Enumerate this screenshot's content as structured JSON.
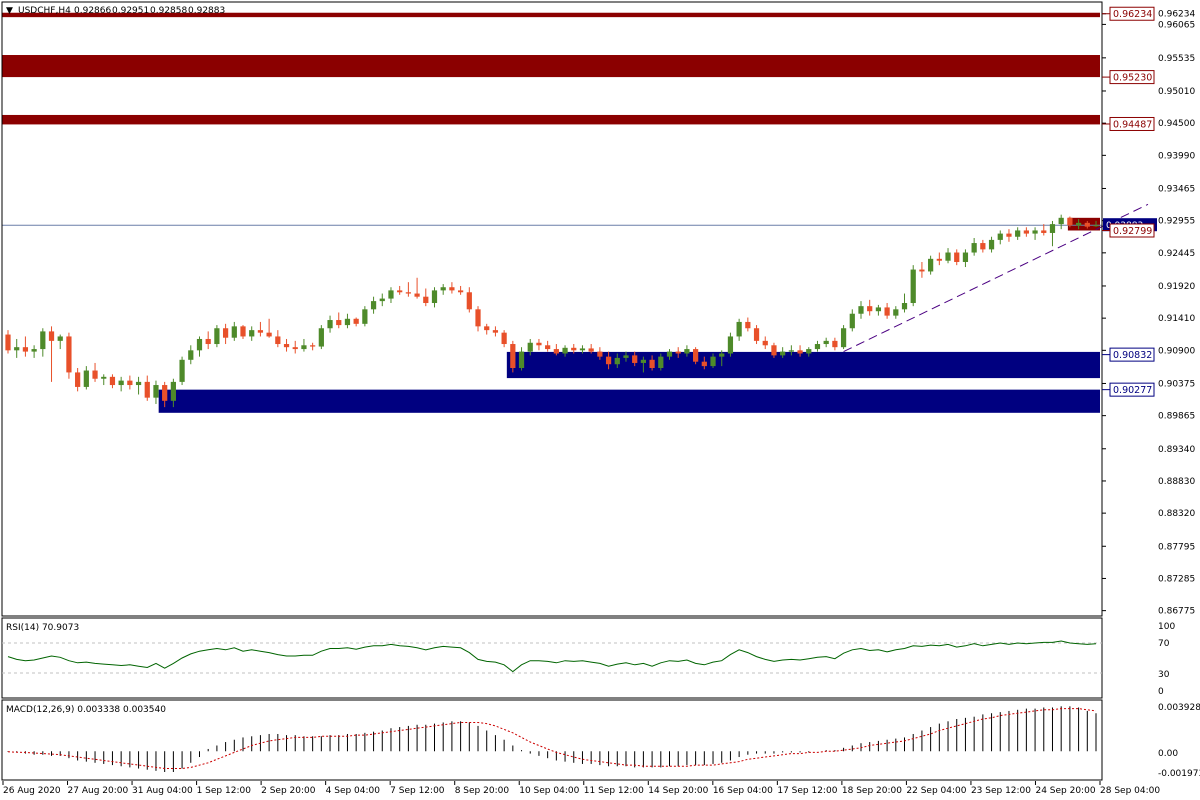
{
  "header": {
    "menu_glyph": "▼",
    "symbol": "USDCHF,H4",
    "open": "0.92866",
    "high": "0.92951",
    "low": "0.92858",
    "close": "0.92883"
  },
  "price_axis": {
    "ticks": [
      "0.96234",
      "0.96065",
      "0.95535",
      "0.95010",
      "0.94500",
      "0.93990",
      "0.93465",
      "0.92955",
      "0.92445",
      "0.91920",
      "0.91410",
      "0.90900",
      "0.90375",
      "0.89865",
      "0.89340",
      "0.88830",
      "0.88320",
      "0.87795",
      "0.87285",
      "0.86775"
    ],
    "current_price": "0.92883"
  },
  "levels": [
    {
      "price": "0.96234",
      "kind": "resistance"
    },
    {
      "price": "0.95230",
      "kind": "resistance"
    },
    {
      "price": "0.94487",
      "kind": "resistance"
    },
    {
      "price": "0.92799",
      "kind": "resistance"
    },
    {
      "price": "0.90832",
      "kind": "support"
    },
    {
      "price": "0.90277",
      "kind": "support"
    }
  ],
  "colors": {
    "up_candle": "#4e8a2a",
    "down_candle": "#e8502a",
    "resistance_zone": "#8b0000",
    "support_zone": "#000080",
    "rsi_line": "#006400",
    "macd_hist": "#000000",
    "macd_signal": "#cc0000",
    "trendline": "#4b0082"
  },
  "time_axis": {
    "labels": [
      "26 Aug 2020",
      "27 Aug 20:00",
      "31 Aug 04:00",
      "1 Sep 12:00",
      "2 Sep 20:00",
      "4 Sep 04:00",
      "7 Sep 12:00",
      "8 Sep 20:00",
      "10 Sep 04:00",
      "11 Sep 12:00",
      "14 Sep 20:00",
      "16 Sep 04:00",
      "17 Sep 12:00",
      "18 Sep 20:00",
      "22 Sep 04:00",
      "23 Sep 12:00",
      "24 Sep 20:00",
      "28 Sep 04:00"
    ]
  },
  "rsi": {
    "label": "RSI(14) 70.9073",
    "levels": [
      "100",
      "70",
      "30",
      "0"
    ]
  },
  "macd": {
    "label": "MACD(12,26,9) 0.003338 0.003540",
    "levels": [
      "0.003928",
      "0.00",
      "-0.001973"
    ]
  },
  "chart_data": {
    "type": "candlestick",
    "symbol": "USDCHF",
    "timeframe": "H4",
    "ylim": [
      0.8669,
      0.9642
    ],
    "candles": [
      {
        "o": 0.9115,
        "h": 0.9122,
        "l": 0.9085,
        "c": 0.909
      },
      {
        "o": 0.909,
        "h": 0.9108,
        "l": 0.9078,
        "c": 0.9095
      },
      {
        "o": 0.9095,
        "h": 0.9112,
        "l": 0.908,
        "c": 0.9088
      },
      {
        "o": 0.9088,
        "h": 0.9098,
        "l": 0.9078,
        "c": 0.9092
      },
      {
        "o": 0.9092,
        "h": 0.9125,
        "l": 0.908,
        "c": 0.912
      },
      {
        "o": 0.912,
        "h": 0.9128,
        "l": 0.904,
        "c": 0.9105
      },
      {
        "o": 0.9105,
        "h": 0.9115,
        "l": 0.9092,
        "c": 0.9112
      },
      {
        "o": 0.9112,
        "h": 0.9118,
        "l": 0.9045,
        "c": 0.9055
      },
      {
        "o": 0.9055,
        "h": 0.9062,
        "l": 0.9025,
        "c": 0.9032
      },
      {
        "o": 0.9032,
        "h": 0.9065,
        "l": 0.9028,
        "c": 0.9058
      },
      {
        "o": 0.9058,
        "h": 0.907,
        "l": 0.904,
        "c": 0.9045
      },
      {
        "o": 0.9045,
        "h": 0.9052,
        "l": 0.9035,
        "c": 0.9048
      },
      {
        "o": 0.9048,
        "h": 0.9052,
        "l": 0.903,
        "c": 0.9035
      },
      {
        "o": 0.9035,
        "h": 0.9048,
        "l": 0.9025,
        "c": 0.9042
      },
      {
        "o": 0.9042,
        "h": 0.905,
        "l": 0.9028,
        "c": 0.9035
      },
      {
        "o": 0.9035,
        "h": 0.9048,
        "l": 0.902,
        "c": 0.904
      },
      {
        "o": 0.904,
        "h": 0.905,
        "l": 0.901,
        "c": 0.9015
      },
      {
        "o": 0.9015,
        "h": 0.9042,
        "l": 0.9005,
        "c": 0.9035
      },
      {
        "o": 0.9035,
        "h": 0.904,
        "l": 0.9,
        "c": 0.901
      },
      {
        "o": 0.901,
        "h": 0.9045,
        "l": 0.9,
        "c": 0.904
      },
      {
        "o": 0.904,
        "h": 0.908,
        "l": 0.9035,
        "c": 0.9075
      },
      {
        "o": 0.9075,
        "h": 0.9098,
        "l": 0.9068,
        "c": 0.909
      },
      {
        "o": 0.909,
        "h": 0.9112,
        "l": 0.908,
        "c": 0.9108
      },
      {
        "o": 0.9108,
        "h": 0.912,
        "l": 0.9092,
        "c": 0.91
      },
      {
        "o": 0.91,
        "h": 0.913,
        "l": 0.9095,
        "c": 0.9125
      },
      {
        "o": 0.9125,
        "h": 0.9132,
        "l": 0.91,
        "c": 0.911
      },
      {
        "o": 0.911,
        "h": 0.9135,
        "l": 0.9105,
        "c": 0.9128
      },
      {
        "o": 0.9128,
        "h": 0.913,
        "l": 0.9108,
        "c": 0.9112
      },
      {
        "o": 0.9112,
        "h": 0.9128,
        "l": 0.9105,
        "c": 0.9122
      },
      {
        "o": 0.9122,
        "h": 0.9135,
        "l": 0.9112,
        "c": 0.9118
      },
      {
        "o": 0.9118,
        "h": 0.914,
        "l": 0.911,
        "c": 0.9112
      },
      {
        "o": 0.9112,
        "h": 0.9122,
        "l": 0.9095,
        "c": 0.91
      },
      {
        "o": 0.91,
        "h": 0.9108,
        "l": 0.9088,
        "c": 0.9095
      },
      {
        "o": 0.9095,
        "h": 0.9105,
        "l": 0.9085,
        "c": 0.9092
      },
      {
        "o": 0.9092,
        "h": 0.9108,
        "l": 0.9088,
        "c": 0.9098
      },
      {
        "o": 0.9098,
        "h": 0.9102,
        "l": 0.909,
        "c": 0.9096
      },
      {
        "o": 0.9096,
        "h": 0.913,
        "l": 0.9092,
        "c": 0.9125
      },
      {
        "o": 0.9125,
        "h": 0.9145,
        "l": 0.9118,
        "c": 0.9138
      },
      {
        "o": 0.9138,
        "h": 0.915,
        "l": 0.9125,
        "c": 0.913
      },
      {
        "o": 0.913,
        "h": 0.9148,
        "l": 0.9125,
        "c": 0.914
      },
      {
        "o": 0.914,
        "h": 0.9142,
        "l": 0.9128,
        "c": 0.9132
      },
      {
        "o": 0.9132,
        "h": 0.916,
        "l": 0.9128,
        "c": 0.9155
      },
      {
        "o": 0.9155,
        "h": 0.9175,
        "l": 0.9148,
        "c": 0.9168
      },
      {
        "o": 0.9168,
        "h": 0.918,
        "l": 0.916,
        "c": 0.9172
      },
      {
        "o": 0.9172,
        "h": 0.919,
        "l": 0.9165,
        "c": 0.9185
      },
      {
        "o": 0.9185,
        "h": 0.9192,
        "l": 0.9178,
        "c": 0.9182
      },
      {
        "o": 0.9182,
        "h": 0.9198,
        "l": 0.9175,
        "c": 0.918
      },
      {
        "o": 0.918,
        "h": 0.9205,
        "l": 0.9172,
        "c": 0.9175
      },
      {
        "o": 0.9175,
        "h": 0.9188,
        "l": 0.916,
        "c": 0.9165
      },
      {
        "o": 0.9165,
        "h": 0.919,
        "l": 0.9158,
        "c": 0.9185
      },
      {
        "o": 0.9185,
        "h": 0.9195,
        "l": 0.9178,
        "c": 0.919
      },
      {
        "o": 0.919,
        "h": 0.9198,
        "l": 0.918,
        "c": 0.9185
      },
      {
        "o": 0.9185,
        "h": 0.9192,
        "l": 0.9178,
        "c": 0.9182
      },
      {
        "o": 0.9182,
        "h": 0.919,
        "l": 0.915,
        "c": 0.9155
      },
      {
        "o": 0.9155,
        "h": 0.916,
        "l": 0.912,
        "c": 0.9128
      },
      {
        "o": 0.9128,
        "h": 0.9132,
        "l": 0.9115,
        "c": 0.9122
      },
      {
        "o": 0.9122,
        "h": 0.9128,
        "l": 0.9112,
        "c": 0.9118
      },
      {
        "o": 0.9118,
        "h": 0.9122,
        "l": 0.9095,
        "c": 0.91
      },
      {
        "o": 0.91,
        "h": 0.9105,
        "l": 0.9055,
        "c": 0.9062
      },
      {
        "o": 0.9062,
        "h": 0.9095,
        "l": 0.9058,
        "c": 0.9088
      },
      {
        "o": 0.9088,
        "h": 0.9108,
        "l": 0.9082,
        "c": 0.9102
      },
      {
        "o": 0.9102,
        "h": 0.9108,
        "l": 0.909,
        "c": 0.9098
      },
      {
        "o": 0.9098,
        "h": 0.9105,
        "l": 0.9088,
        "c": 0.9092
      },
      {
        "o": 0.9092,
        "h": 0.91,
        "l": 0.9082,
        "c": 0.9085
      },
      {
        "o": 0.9085,
        "h": 0.9098,
        "l": 0.908,
        "c": 0.9094
      },
      {
        "o": 0.9094,
        "h": 0.91,
        "l": 0.9085,
        "c": 0.909
      },
      {
        "o": 0.909,
        "h": 0.9098,
        "l": 0.9085,
        "c": 0.9093
      },
      {
        "o": 0.9093,
        "h": 0.91,
        "l": 0.9085,
        "c": 0.9088
      },
      {
        "o": 0.9088,
        "h": 0.9095,
        "l": 0.9075,
        "c": 0.908
      },
      {
        "o": 0.908,
        "h": 0.9088,
        "l": 0.906,
        "c": 0.9068
      },
      {
        "o": 0.9068,
        "h": 0.9085,
        "l": 0.9062,
        "c": 0.9078
      },
      {
        "o": 0.9078,
        "h": 0.9088,
        "l": 0.9072,
        "c": 0.9082
      },
      {
        "o": 0.9082,
        "h": 0.9088,
        "l": 0.9065,
        "c": 0.907
      },
      {
        "o": 0.907,
        "h": 0.908,
        "l": 0.9055,
        "c": 0.9075
      },
      {
        "o": 0.9075,
        "h": 0.9082,
        "l": 0.9058,
        "c": 0.9062
      },
      {
        "o": 0.9062,
        "h": 0.9085,
        "l": 0.9058,
        "c": 0.908
      },
      {
        "o": 0.908,
        "h": 0.9092,
        "l": 0.9075,
        "c": 0.9088
      },
      {
        "o": 0.9088,
        "h": 0.9095,
        "l": 0.9078,
        "c": 0.9085
      },
      {
        "o": 0.9085,
        "h": 0.9098,
        "l": 0.908,
        "c": 0.9092
      },
      {
        "o": 0.9092,
        "h": 0.9095,
        "l": 0.9068,
        "c": 0.9072
      },
      {
        "o": 0.9072,
        "h": 0.908,
        "l": 0.906,
        "c": 0.9065
      },
      {
        "o": 0.9065,
        "h": 0.9085,
        "l": 0.9062,
        "c": 0.908
      },
      {
        "o": 0.908,
        "h": 0.909,
        "l": 0.9065,
        "c": 0.9085
      },
      {
        "o": 0.9085,
        "h": 0.9118,
        "l": 0.908,
        "c": 0.9112
      },
      {
        "o": 0.9112,
        "h": 0.914,
        "l": 0.9105,
        "c": 0.9135
      },
      {
        "o": 0.9135,
        "h": 0.9142,
        "l": 0.912,
        "c": 0.9125
      },
      {
        "o": 0.9125,
        "h": 0.913,
        "l": 0.91,
        "c": 0.9105
      },
      {
        "o": 0.9105,
        "h": 0.9112,
        "l": 0.9092,
        "c": 0.9098
      },
      {
        "o": 0.9098,
        "h": 0.9102,
        "l": 0.9078,
        "c": 0.9082
      },
      {
        "o": 0.9082,
        "h": 0.9095,
        "l": 0.9078,
        "c": 0.9088
      },
      {
        "o": 0.9088,
        "h": 0.9098,
        "l": 0.9082,
        "c": 0.909
      },
      {
        "o": 0.909,
        "h": 0.9098,
        "l": 0.908,
        "c": 0.9085
      },
      {
        "o": 0.9085,
        "h": 0.9095,
        "l": 0.908,
        "c": 0.9092
      },
      {
        "o": 0.9092,
        "h": 0.9105,
        "l": 0.9088,
        "c": 0.91
      },
      {
        "o": 0.91,
        "h": 0.911,
        "l": 0.9095,
        "c": 0.9105
      },
      {
        "o": 0.9105,
        "h": 0.911,
        "l": 0.909,
        "c": 0.9095
      },
      {
        "o": 0.9095,
        "h": 0.913,
        "l": 0.9092,
        "c": 0.9125
      },
      {
        "o": 0.9125,
        "h": 0.9155,
        "l": 0.912,
        "c": 0.9148
      },
      {
        "o": 0.9148,
        "h": 0.9168,
        "l": 0.914,
        "c": 0.916
      },
      {
        "o": 0.916,
        "h": 0.917,
        "l": 0.9145,
        "c": 0.9152
      },
      {
        "o": 0.9152,
        "h": 0.9162,
        "l": 0.9145,
        "c": 0.9158
      },
      {
        "o": 0.9158,
        "h": 0.9165,
        "l": 0.914,
        "c": 0.9145
      },
      {
        "o": 0.9145,
        "h": 0.916,
        "l": 0.914,
        "c": 0.9155
      },
      {
        "o": 0.9155,
        "h": 0.918,
        "l": 0.915,
        "c": 0.9165
      },
      {
        "o": 0.9165,
        "h": 0.9225,
        "l": 0.916,
        "c": 0.9218
      },
      {
        "o": 0.9218,
        "h": 0.923,
        "l": 0.9205,
        "c": 0.9215
      },
      {
        "o": 0.9215,
        "h": 0.924,
        "l": 0.921,
        "c": 0.9235
      },
      {
        "o": 0.9235,
        "h": 0.9245,
        "l": 0.9225,
        "c": 0.9232
      },
      {
        "o": 0.9232,
        "h": 0.9252,
        "l": 0.9228,
        "c": 0.9245
      },
      {
        "o": 0.9245,
        "h": 0.925,
        "l": 0.9225,
        "c": 0.923
      },
      {
        "o": 0.923,
        "h": 0.925,
        "l": 0.9222,
        "c": 0.9245
      },
      {
        "o": 0.9245,
        "h": 0.9268,
        "l": 0.924,
        "c": 0.926
      },
      {
        "o": 0.926,
        "h": 0.9265,
        "l": 0.9245,
        "c": 0.925
      },
      {
        "o": 0.925,
        "h": 0.927,
        "l": 0.9245,
        "c": 0.9265
      },
      {
        "o": 0.9265,
        "h": 0.928,
        "l": 0.9258,
        "c": 0.9275
      },
      {
        "o": 0.9275,
        "h": 0.9282,
        "l": 0.9262,
        "c": 0.927
      },
      {
        "o": 0.927,
        "h": 0.9285,
        "l": 0.9265,
        "c": 0.928
      },
      {
        "o": 0.928,
        "h": 0.9285,
        "l": 0.927,
        "c": 0.9275
      },
      {
        "o": 0.9275,
        "h": 0.9285,
        "l": 0.9265,
        "c": 0.928
      },
      {
        "o": 0.928,
        "h": 0.929,
        "l": 0.9272,
        "c": 0.9276
      },
      {
        "o": 0.9276,
        "h": 0.9295,
        "l": 0.9255,
        "c": 0.929
      },
      {
        "o": 0.929,
        "h": 0.9305,
        "l": 0.9282,
        "c": 0.93
      },
      {
        "o": 0.93,
        "h": 0.9302,
        "l": 0.9285,
        "c": 0.9288
      },
      {
        "o": 0.9288,
        "h": 0.9298,
        "l": 0.9282,
        "c": 0.9292
      },
      {
        "o": 0.9292,
        "h": 0.9295,
        "l": 0.9283,
        "c": 0.9286
      },
      {
        "o": 0.92866,
        "h": 0.92951,
        "l": 0.92858,
        "c": 0.92883
      }
    ],
    "rsi_values": [
      52,
      48,
      46,
      47,
      50,
      53,
      51,
      46,
      43,
      44,
      42,
      41,
      40,
      39,
      40,
      38,
      36,
      42,
      35,
      42,
      50,
      56,
      60,
      62,
      64,
      62,
      65,
      60,
      62,
      60,
      58,
      55,
      53,
      53,
      54,
      54,
      60,
      64,
      64,
      65,
      63,
      66,
      68,
      68,
      70,
      68,
      67,
      65,
      62,
      65,
      67,
      66,
      65,
      58,
      48,
      45,
      44,
      40,
      30,
      40,
      46,
      46,
      45,
      43,
      46,
      45,
      46,
      44,
      42,
      38,
      41,
      43,
      40,
      42,
      38,
      43,
      46,
      45,
      47,
      42,
      40,
      44,
      46,
      55,
      62,
      58,
      52,
      48,
      45,
      47,
      48,
      47,
      49,
      51,
      52,
      49,
      57,
      62,
      64,
      61,
      62,
      59,
      62,
      64,
      68,
      67,
      69,
      68,
      70,
      66,
      68,
      71,
      68,
      70,
      72,
      70,
      72,
      71,
      72,
      73,
      73,
      75,
      72,
      71,
      70,
      71
    ],
    "macd_values": [
      -5e-05,
      -0.0001,
      -0.0002,
      -0.0003,
      -0.0003,
      -0.0004,
      -0.0004,
      -0.0006,
      -0.0008,
      -0.0009,
      -0.001,
      -0.0011,
      -0.0012,
      -0.0013,
      -0.0014,
      -0.0015,
      -0.0016,
      -0.0017,
      -0.0018,
      -0.0018,
      -0.0015,
      -0.001,
      -0.0005,
      0.0002,
      0.0005,
      0.0008,
      0.001,
      0.0012,
      0.0013,
      0.0014,
      0.0015,
      0.0015,
      0.0014,
      0.0014,
      0.0013,
      0.0013,
      0.0013,
      0.0014,
      0.0014,
      0.0015,
      0.0015,
      0.0016,
      0.0017,
      0.0018,
      0.002,
      0.0021,
      0.0022,
      0.0023,
      0.0023,
      0.0024,
      0.0025,
      0.0026,
      0.0026,
      0.0025,
      0.0022,
      0.0018,
      0.0014,
      0.001,
      0.0005,
      0.0001,
      -0.0002,
      -0.0004,
      -0.0006,
      -0.0008,
      -0.0009,
      -0.001,
      -0.0011,
      -0.0011,
      -0.0012,
      -0.0013,
      -0.0013,
      -0.0013,
      -0.0014,
      -0.0014,
      -0.0014,
      -0.0014,
      -0.0013,
      -0.0013,
      -0.0012,
      -0.0012,
      -0.0012,
      -0.0011,
      -0.001,
      -0.0008,
      -0.0005,
      -0.0003,
      -0.0002,
      -0.0002,
      -0.0002,
      -0.0001,
      -0.0001,
      -0.0001,
      -0.0001,
      0.0,
      0.0001,
      0.0001,
      0.0003,
      0.0005,
      0.0007,
      0.0008,
      0.0009,
      0.001,
      0.0011,
      0.0012,
      0.0015,
      0.0018,
      0.0021,
      0.0024,
      0.0026,
      0.0028,
      0.0029,
      0.003,
      0.0032,
      0.0033,
      0.0034,
      0.0035,
      0.0036,
      0.0037,
      0.0037,
      0.0038,
      0.0038,
      0.0039,
      0.0039,
      0.0038,
      0.0035,
      0.0033
    ],
    "macd_signal": [
      -5e-05,
      -8e-05,
      -0.0001,
      -0.00015,
      -0.0002,
      -0.00025,
      -0.0003,
      -0.0004,
      -0.0005,
      -0.0006,
      -0.0007,
      -0.0008,
      -0.0009,
      -0.001,
      -0.0011,
      -0.0012,
      -0.0013,
      -0.0014,
      -0.0015,
      -0.0015,
      -0.0015,
      -0.0014,
      -0.0012,
      -0.001,
      -0.0007,
      -0.0004,
      -0.0001,
      0.0002,
      0.0005,
      0.0007,
      0.0009,
      0.001,
      0.0011,
      0.0012,
      0.0012,
      0.0012,
      0.0013,
      0.0013,
      0.0013,
      0.0013,
      0.0014,
      0.0014,
      0.0015,
      0.0016,
      0.0017,
      0.0018,
      0.0019,
      0.002,
      0.0021,
      0.0022,
      0.0023,
      0.0024,
      0.0025,
      0.0025,
      0.0025,
      0.0024,
      0.0022,
      0.0019,
      0.0016,
      0.0012,
      0.0008,
      0.0005,
      0.0002,
      -0.0001,
      -0.0003,
      -0.0005,
      -0.0007,
      -0.0008,
      -0.0009,
      -0.001,
      -0.0011,
      -0.0012,
      -0.0012,
      -0.0013,
      -0.0013,
      -0.0013,
      -0.0013,
      -0.0013,
      -0.0013,
      -0.0012,
      -0.0012,
      -0.0012,
      -0.0011,
      -0.001,
      -0.0009,
      -0.0007,
      -0.0006,
      -0.0005,
      -0.0004,
      -0.0003,
      -0.0002,
      -0.0002,
      -0.0001,
      -0.0001,
      0.0,
      0.0,
      0.0001,
      0.0002,
      0.0003,
      0.0005,
      0.0006,
      0.0007,
      0.0008,
      0.0009,
      0.0011,
      0.0013,
      0.0015,
      0.0018,
      0.002,
      0.0022,
      0.0024,
      0.0026,
      0.0028,
      0.0029,
      0.0031,
      0.0032,
      0.0033,
      0.0034,
      0.0035,
      0.0036,
      0.0036,
      0.0037,
      0.0037,
      0.0037,
      0.0036,
      0.0035
    ]
  }
}
